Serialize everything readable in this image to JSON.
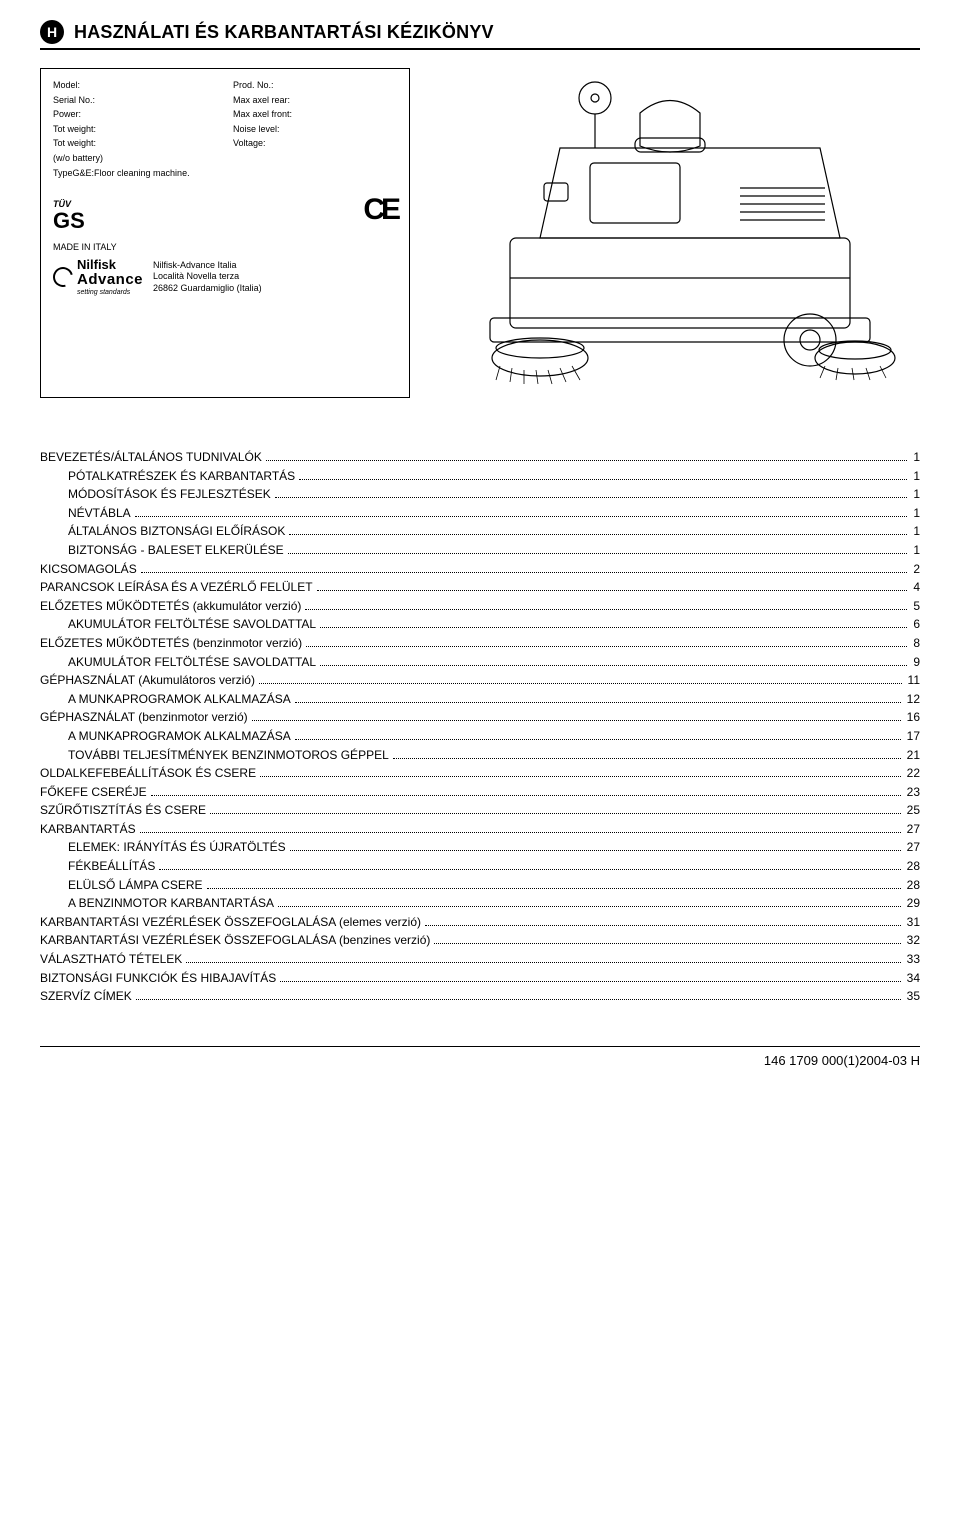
{
  "header": {
    "badge": "H",
    "title": "HASZNÁLATI ÉS KARBANTARTÁSI KÉZIKÖNYV"
  },
  "nameplate": {
    "left": [
      "Model:",
      "Serial No.:",
      "Power:",
      "Tot weight:",
      "Tot weight:",
      "(w/o battery)",
      "TypeG&E:Floor cleaning machine."
    ],
    "right": [
      "Prod. No.:",
      "Max axel rear:",
      "Max axel front:",
      "Noise level:",
      "Voltage:"
    ],
    "tuv": "TÜV",
    "gs": "GS",
    "ce": "CE",
    "made_in": "MADE IN ITALY",
    "brand_top": "Nilfisk",
    "brand_bottom": "Advance",
    "brand_sub": "setting standards",
    "addr1": "Nilfisk-Advance Italia",
    "addr2": "Località Novella terza",
    "addr3": "26862 Guardamiglio (Italia)"
  },
  "toc": [
    {
      "level": 1,
      "label": "BEVEZETÉS/ÁLTALÁNOS TUDNIVALÓK",
      "page": "1"
    },
    {
      "level": 2,
      "label": "PÓTALKATRÉSZEK ÉS KARBANTARTÁS",
      "page": "1"
    },
    {
      "level": 2,
      "label": "MÓDOSÍTÁSOK ÉS FEJLESZTÉSEK",
      "page": "1"
    },
    {
      "level": 2,
      "label": "NÉVTÁBLA",
      "page": "1"
    },
    {
      "level": 2,
      "label": "ÁLTALÁNOS BIZTONSÁGI ELŐÍRÁSOK",
      "page": "1"
    },
    {
      "level": 2,
      "label": "BIZTONSÁG - BALESET ELKERÜLÉSE",
      "page": "1"
    },
    {
      "level": 1,
      "label": "KICSOMAGOLÁS",
      "page": "2"
    },
    {
      "level": 1,
      "label": "PARANCSOK LEÍRÁSA ÉS A VEZÉRLŐ FELÜLET",
      "page": "4"
    },
    {
      "level": 1,
      "label": "ELŐZETES MŰKÖDTETÉS (akkumulátor verzió)",
      "page": "5"
    },
    {
      "level": 2,
      "label": "AKUMULÁTOR FELTÖLTÉSE SAVOLDATTAL",
      "page": "6"
    },
    {
      "level": 1,
      "label": "ELŐZETES MŰKÖDTETÉS (benzinmotor verzió)",
      "page": "8"
    },
    {
      "level": 2,
      "label": "AKUMULÁTOR FELTÖLTÉSE SAVOLDATTAL",
      "page": "9"
    },
    {
      "level": 1,
      "label": "GÉPHASZNÁLAT (Akumulátoros verzió)",
      "page": "11"
    },
    {
      "level": 2,
      "label": "A MUNKAPROGRAMOK ALKALMAZÁSA",
      "page": "12"
    },
    {
      "level": 1,
      "label": "GÉPHASZNÁLAT (benzinmotor verzió)",
      "page": "16"
    },
    {
      "level": 2,
      "label": "A MUNKAPROGRAMOK ALKALMAZÁSA",
      "page": "17"
    },
    {
      "level": 2,
      "label": "TOVÁBBI TELJESÍTMÉNYEK BENZINMOTOROS GÉPPEL",
      "page": "21"
    },
    {
      "level": 1,
      "label": "OLDALKEFEBEÁLLÍTÁSOK ÉS CSERE",
      "page": "22"
    },
    {
      "level": 1,
      "label": "FŐKEFE CSERÉJE",
      "page": "23"
    },
    {
      "level": 1,
      "label": "SZŰRŐTISZTÍTÁS ÉS CSERE",
      "page": "25"
    },
    {
      "level": 1,
      "label": "KARBANTARTÁS",
      "page": "27"
    },
    {
      "level": 2,
      "label": "ELEMEK: IRÁNYÍTÁS ÉS ÚJRATÖLTÉS",
      "page": "27"
    },
    {
      "level": 2,
      "label": "FÉKBEÁLLÍTÁS",
      "page": "28"
    },
    {
      "level": 2,
      "label": "ELÜLSŐ LÁMPA CSERE",
      "page": "28"
    },
    {
      "level": 2,
      "label": "A BENZINMOTOR KARBANTARTÁSA",
      "page": "29"
    },
    {
      "level": 1,
      "label": "KARBANTARTÁSI VEZÉRLÉSEK ÖSSZEFOGLALÁSA (elemes verzió)",
      "page": "31"
    },
    {
      "level": 1,
      "label": "KARBANTARTÁSI VEZÉRLÉSEK ÖSSZEFOGLALÁSA (benzines verzió)",
      "page": "32"
    },
    {
      "level": 1,
      "label": "VÁLASZTHATÓ TÉTELEK",
      "page": "33"
    },
    {
      "level": 1,
      "label": "BIZTONSÁGI FUNKCIÓK ÉS HIBAJAVÍTÁS",
      "page": "34"
    },
    {
      "level": 1,
      "label": "SZERVÍZ CÍMEK",
      "page": "35"
    }
  ],
  "footer": "146 1709 000(1)2004-03 H"
}
